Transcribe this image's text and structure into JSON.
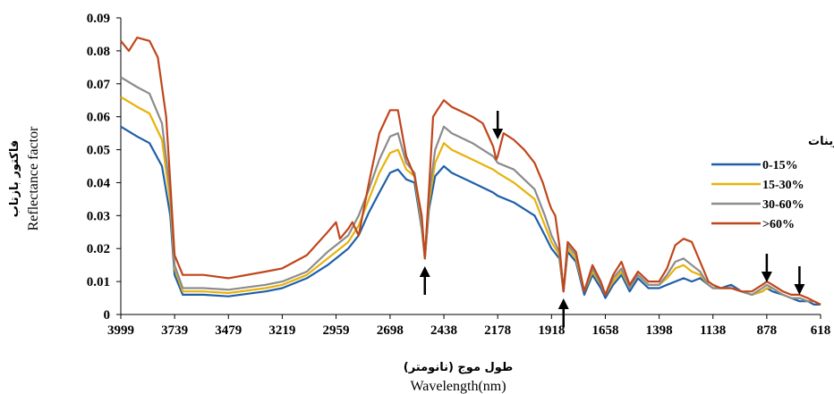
{
  "chart_data": {
    "type": "line",
    "xlabel": "Wavelength(nm)",
    "xlabel_fa": "طول موج (نانومتر)",
    "ylabel": "Reflectance factor",
    "ylabel_fa": "فاکتور بازتاب",
    "x_ticks": [
      "3999",
      "3739",
      "3479",
      "3219",
      "2959",
      "2698",
      "2438",
      "2178",
      "1918",
      "1658",
      "1398",
      "1138",
      "878",
      "618"
    ],
    "x_tick_values": [
      3999,
      3739,
      3479,
      3219,
      2959,
      2698,
      2438,
      2178,
      1918,
      1658,
      1398,
      1138,
      878,
      618
    ],
    "xlim": [
      3999,
      618
    ],
    "x_reversed": true,
    "y_ticks": [
      "0",
      "0.01",
      "0.02",
      "0.03",
      "0.04",
      "0.05",
      "0.06",
      "0.07",
      "0.08",
      "0.09"
    ],
    "ylim": [
      0,
      0.09
    ],
    "grid": false,
    "legend": {
      "title": "میزان کربنات",
      "placement": "right"
    },
    "series": [
      {
        "name": "0-15%",
        "color": "#1f5fa8",
        "points": [
          [
            3999,
            0.057
          ],
          [
            3920,
            0.054
          ],
          [
            3860,
            0.052
          ],
          [
            3800,
            0.045
          ],
          [
            3760,
            0.03
          ],
          [
            3739,
            0.012
          ],
          [
            3700,
            0.006
          ],
          [
            3600,
            0.006
          ],
          [
            3479,
            0.0055
          ],
          [
            3300,
            0.007
          ],
          [
            3219,
            0.008
          ],
          [
            3100,
            0.011
          ],
          [
            3000,
            0.015
          ],
          [
            2959,
            0.017
          ],
          [
            2900,
            0.02
          ],
          [
            2850,
            0.024
          ],
          [
            2800,
            0.031
          ],
          [
            2750,
            0.037
          ],
          [
            2698,
            0.043
          ],
          [
            2660,
            0.044
          ],
          [
            2620,
            0.041
          ],
          [
            2580,
            0.04
          ],
          [
            2545,
            0.026
          ],
          [
            2530,
            0.017
          ],
          [
            2510,
            0.032
          ],
          [
            2480,
            0.042
          ],
          [
            2438,
            0.045
          ],
          [
            2400,
            0.043
          ],
          [
            2300,
            0.04
          ],
          [
            2200,
            0.037
          ],
          [
            2178,
            0.036
          ],
          [
            2100,
            0.034
          ],
          [
            2000,
            0.03
          ],
          [
            1950,
            0.024
          ],
          [
            1918,
            0.02
          ],
          [
            1880,
            0.017
          ],
          [
            1860,
            0.007
          ],
          [
            1840,
            0.019
          ],
          [
            1800,
            0.016
          ],
          [
            1760,
            0.006
          ],
          [
            1720,
            0.012
          ],
          [
            1680,
            0.008
          ],
          [
            1658,
            0.005
          ],
          [
            1620,
            0.009
          ],
          [
            1580,
            0.012
          ],
          [
            1540,
            0.007
          ],
          [
            1500,
            0.011
          ],
          [
            1450,
            0.008
          ],
          [
            1398,
            0.008
          ],
          [
            1360,
            0.009
          ],
          [
            1320,
            0.01
          ],
          [
            1280,
            0.011
          ],
          [
            1240,
            0.01
          ],
          [
            1200,
            0.011
          ],
          [
            1160,
            0.009
          ],
          [
            1138,
            0.008
          ],
          [
            1100,
            0.008
          ],
          [
            1050,
            0.009
          ],
          [
            1000,
            0.007
          ],
          [
            950,
            0.006
          ],
          [
            900,
            0.007
          ],
          [
            878,
            0.008
          ],
          [
            850,
            0.007
          ],
          [
            800,
            0.006
          ],
          [
            760,
            0.005
          ],
          [
            720,
            0.004
          ],
          [
            680,
            0.004
          ],
          [
            650,
            0.003
          ],
          [
            618,
            0.003
          ]
        ]
      },
      {
        "name": "15-30%",
        "color": "#e8b20a",
        "points": [
          [
            3999,
            0.066
          ],
          [
            3920,
            0.063
          ],
          [
            3860,
            0.061
          ],
          [
            3800,
            0.053
          ],
          [
            3760,
            0.034
          ],
          [
            3739,
            0.014
          ],
          [
            3700,
            0.007
          ],
          [
            3600,
            0.007
          ],
          [
            3479,
            0.0065
          ],
          [
            3300,
            0.008
          ],
          [
            3219,
            0.009
          ],
          [
            3100,
            0.012
          ],
          [
            3000,
            0.017
          ],
          [
            2959,
            0.019
          ],
          [
            2900,
            0.022
          ],
          [
            2850,
            0.027
          ],
          [
            2800,
            0.035
          ],
          [
            2750,
            0.043
          ],
          [
            2698,
            0.049
          ],
          [
            2660,
            0.05
          ],
          [
            2620,
            0.044
          ],
          [
            2580,
            0.042
          ],
          [
            2545,
            0.027
          ],
          [
            2530,
            0.017
          ],
          [
            2510,
            0.034
          ],
          [
            2480,
            0.046
          ],
          [
            2438,
            0.052
          ],
          [
            2400,
            0.05
          ],
          [
            2300,
            0.047
          ],
          [
            2200,
            0.044
          ],
          [
            2178,
            0.043
          ],
          [
            2100,
            0.04
          ],
          [
            2000,
            0.035
          ],
          [
            1950,
            0.027
          ],
          [
            1918,
            0.022
          ],
          [
            1880,
            0.018
          ],
          [
            1860,
            0.007
          ],
          [
            1840,
            0.02
          ],
          [
            1800,
            0.017
          ],
          [
            1760,
            0.007
          ],
          [
            1720,
            0.013
          ],
          [
            1680,
            0.009
          ],
          [
            1658,
            0.006
          ],
          [
            1620,
            0.01
          ],
          [
            1580,
            0.013
          ],
          [
            1540,
            0.008
          ],
          [
            1500,
            0.012
          ],
          [
            1450,
            0.009
          ],
          [
            1398,
            0.009
          ],
          [
            1360,
            0.011
          ],
          [
            1320,
            0.014
          ],
          [
            1280,
            0.015
          ],
          [
            1240,
            0.013
          ],
          [
            1200,
            0.012
          ],
          [
            1160,
            0.009
          ],
          [
            1138,
            0.008
          ],
          [
            1100,
            0.008
          ],
          [
            1050,
            0.008
          ],
          [
            1000,
            0.007
          ],
          [
            950,
            0.006
          ],
          [
            900,
            0.007
          ],
          [
            878,
            0.008
          ],
          [
            850,
            0.008
          ],
          [
            800,
            0.006
          ],
          [
            760,
            0.005
          ],
          [
            720,
            0.005
          ],
          [
            680,
            0.004
          ],
          [
            650,
            0.004
          ],
          [
            618,
            0.003
          ]
        ]
      },
      {
        "name": "30-60%",
        "color": "#8c8c8c",
        "points": [
          [
            3999,
            0.072
          ],
          [
            3920,
            0.069
          ],
          [
            3860,
            0.067
          ],
          [
            3800,
            0.058
          ],
          [
            3760,
            0.037
          ],
          [
            3739,
            0.015
          ],
          [
            3700,
            0.008
          ],
          [
            3600,
            0.008
          ],
          [
            3479,
            0.0075
          ],
          [
            3300,
            0.009
          ],
          [
            3219,
            0.01
          ],
          [
            3100,
            0.013
          ],
          [
            3000,
            0.019
          ],
          [
            2959,
            0.021
          ],
          [
            2900,
            0.024
          ],
          [
            2850,
            0.03
          ],
          [
            2800,
            0.038
          ],
          [
            2750,
            0.047
          ],
          [
            2698,
            0.054
          ],
          [
            2660,
            0.055
          ],
          [
            2620,
            0.046
          ],
          [
            2580,
            0.043
          ],
          [
            2545,
            0.028
          ],
          [
            2530,
            0.017
          ],
          [
            2510,
            0.036
          ],
          [
            2480,
            0.05
          ],
          [
            2438,
            0.057
          ],
          [
            2400,
            0.055
          ],
          [
            2300,
            0.052
          ],
          [
            2200,
            0.048
          ],
          [
            2178,
            0.046
          ],
          [
            2100,
            0.044
          ],
          [
            2000,
            0.038
          ],
          [
            1950,
            0.03
          ],
          [
            1918,
            0.024
          ],
          [
            1880,
            0.019
          ],
          [
            1860,
            0.007
          ],
          [
            1840,
            0.021
          ],
          [
            1800,
            0.018
          ],
          [
            1760,
            0.007
          ],
          [
            1720,
            0.014
          ],
          [
            1680,
            0.009
          ],
          [
            1658,
            0.006
          ],
          [
            1620,
            0.011
          ],
          [
            1580,
            0.014
          ],
          [
            1540,
            0.008
          ],
          [
            1500,
            0.012
          ],
          [
            1450,
            0.009
          ],
          [
            1398,
            0.009
          ],
          [
            1360,
            0.012
          ],
          [
            1320,
            0.016
          ],
          [
            1280,
            0.017
          ],
          [
            1240,
            0.015
          ],
          [
            1200,
            0.013
          ],
          [
            1160,
            0.009
          ],
          [
            1138,
            0.008
          ],
          [
            1100,
            0.008
          ],
          [
            1050,
            0.008
          ],
          [
            1000,
            0.007
          ],
          [
            950,
            0.006
          ],
          [
            900,
            0.008
          ],
          [
            878,
            0.009
          ],
          [
            850,
            0.008
          ],
          [
            800,
            0.006
          ],
          [
            760,
            0.005
          ],
          [
            720,
            0.005
          ],
          [
            680,
            0.004
          ],
          [
            650,
            0.004
          ],
          [
            618,
            0.003
          ]
        ]
      },
      {
        "name": ">60%",
        "color": "#c0461b",
        "points": [
          [
            3999,
            0.083
          ],
          [
            3960,
            0.08
          ],
          [
            3920,
            0.084
          ],
          [
            3860,
            0.083
          ],
          [
            3820,
            0.078
          ],
          [
            3780,
            0.06
          ],
          [
            3760,
            0.04
          ],
          [
            3739,
            0.018
          ],
          [
            3700,
            0.012
          ],
          [
            3600,
            0.012
          ],
          [
            3479,
            0.011
          ],
          [
            3300,
            0.013
          ],
          [
            3219,
            0.014
          ],
          [
            3100,
            0.018
          ],
          [
            3000,
            0.025
          ],
          [
            2959,
            0.028
          ],
          [
            2940,
            0.023
          ],
          [
            2900,
            0.026
          ],
          [
            2880,
            0.028
          ],
          [
            2850,
            0.024
          ],
          [
            2800,
            0.04
          ],
          [
            2750,
            0.055
          ],
          [
            2698,
            0.062
          ],
          [
            2660,
            0.062
          ],
          [
            2620,
            0.048
          ],
          [
            2580,
            0.042
          ],
          [
            2545,
            0.03
          ],
          [
            2530,
            0.017
          ],
          [
            2510,
            0.038
          ],
          [
            2490,
            0.06
          ],
          [
            2470,
            0.062
          ],
          [
            2438,
            0.065
          ],
          [
            2400,
            0.063
          ],
          [
            2300,
            0.06
          ],
          [
            2250,
            0.058
          ],
          [
            2200,
            0.051
          ],
          [
            2185,
            0.047
          ],
          [
            2178,
            0.048
          ],
          [
            2150,
            0.055
          ],
          [
            2100,
            0.053
          ],
          [
            2050,
            0.05
          ],
          [
            2000,
            0.046
          ],
          [
            1960,
            0.04
          ],
          [
            1930,
            0.034
          ],
          [
            1918,
            0.032
          ],
          [
            1900,
            0.03
          ],
          [
            1880,
            0.021
          ],
          [
            1860,
            0.007
          ],
          [
            1840,
            0.022
          ],
          [
            1800,
            0.019
          ],
          [
            1760,
            0.007
          ],
          [
            1720,
            0.015
          ],
          [
            1680,
            0.01
          ],
          [
            1658,
            0.006
          ],
          [
            1620,
            0.012
          ],
          [
            1580,
            0.016
          ],
          [
            1540,
            0.009
          ],
          [
            1500,
            0.013
          ],
          [
            1450,
            0.01
          ],
          [
            1398,
            0.01
          ],
          [
            1360,
            0.014
          ],
          [
            1320,
            0.021
          ],
          [
            1280,
            0.023
          ],
          [
            1240,
            0.022
          ],
          [
            1200,
            0.016
          ],
          [
            1160,
            0.01
          ],
          [
            1138,
            0.009
          ],
          [
            1100,
            0.008
          ],
          [
            1050,
            0.008
          ],
          [
            1000,
            0.007
          ],
          [
            950,
            0.007
          ],
          [
            900,
            0.009
          ],
          [
            878,
            0.01
          ],
          [
            850,
            0.009
          ],
          [
            800,
            0.007
          ],
          [
            760,
            0.006
          ],
          [
            720,
            0.006
          ],
          [
            680,
            0.005
          ],
          [
            650,
            0.004
          ],
          [
            618,
            0.003
          ]
        ]
      }
    ],
    "annotations": [
      {
        "type": "arrow",
        "direction": "up",
        "x": 2530
      },
      {
        "type": "arrow",
        "direction": "down",
        "x": 2178
      },
      {
        "type": "arrow",
        "direction": "up",
        "x": 1860
      },
      {
        "type": "arrow",
        "direction": "down",
        "x": 878
      },
      {
        "type": "arrow",
        "direction": "down",
        "x": 720
      }
    ]
  }
}
